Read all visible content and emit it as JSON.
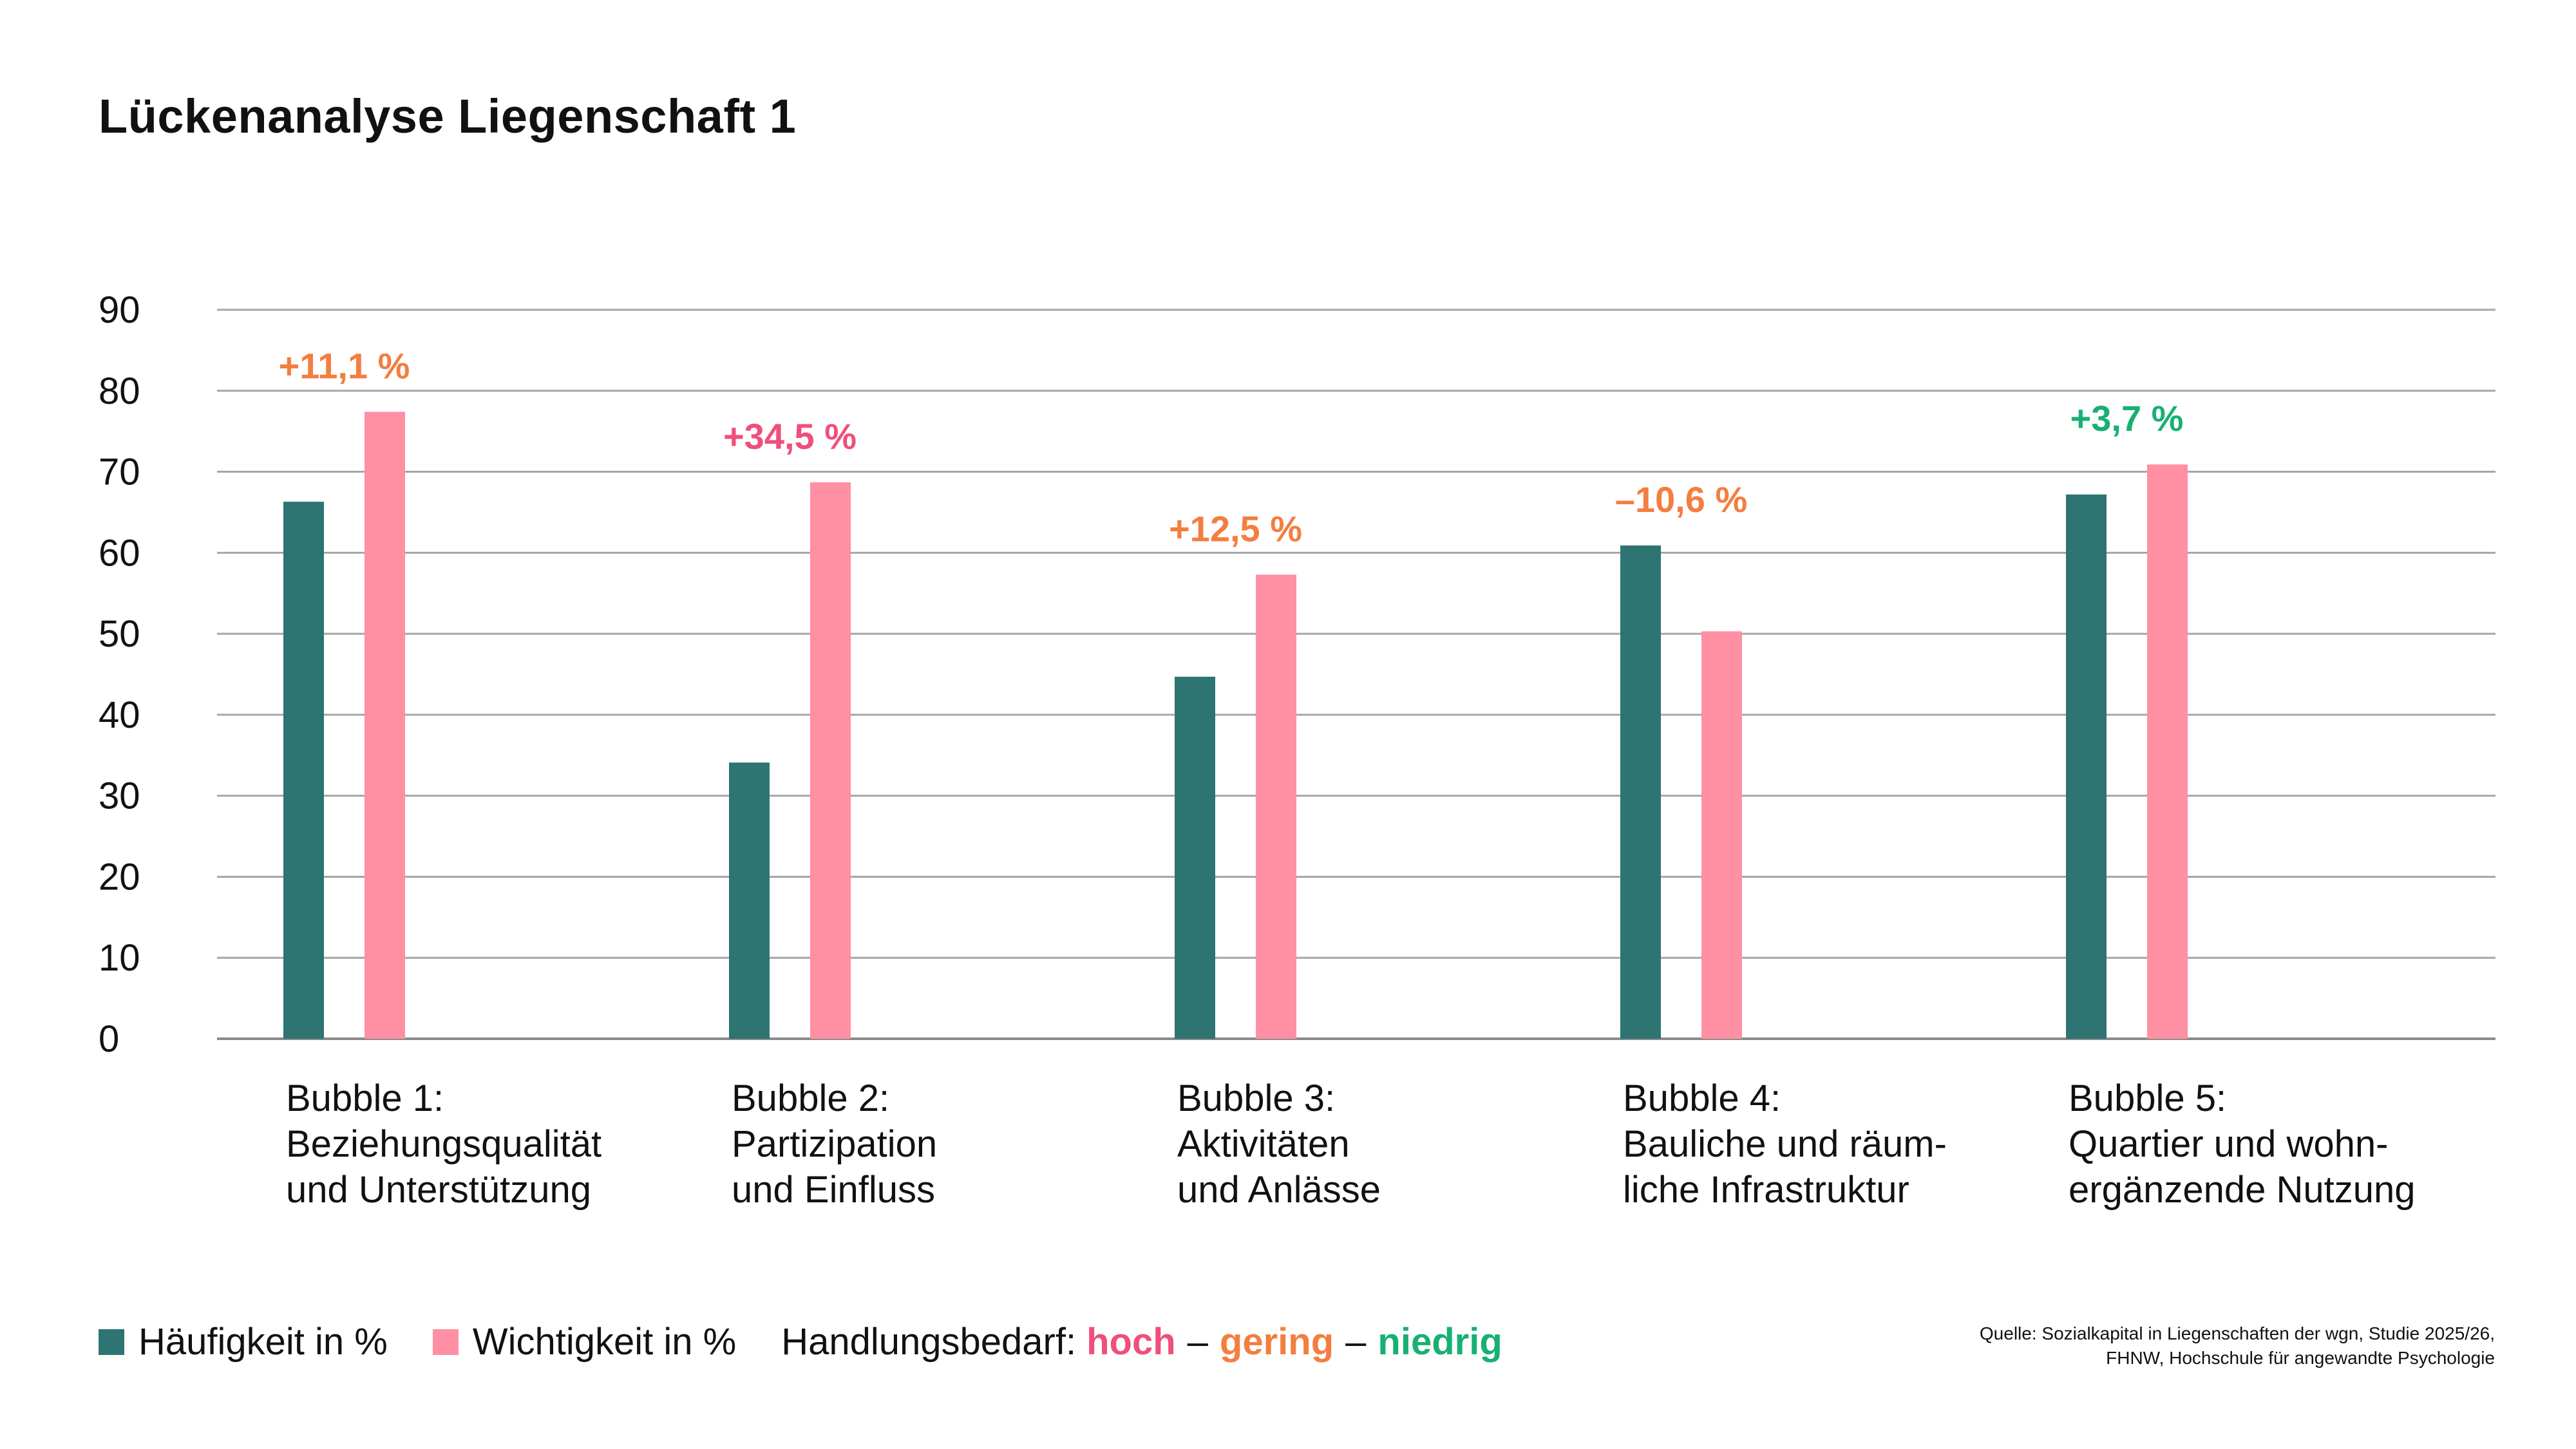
{
  "title": "Lückenanalyse Liegenschaft 1",
  "colors": {
    "haeufigkeit": "#2e7472",
    "wichtigkeit": "#ff8fa3",
    "hoch": "#ef4f7b",
    "gering": "#f37e3f",
    "niedrig": "#18b072",
    "grid": "#a6a6a6"
  },
  "chart_data": {
    "type": "bar",
    "title": "Lückenanalyse Liegenschaft 1",
    "ylim": [
      0,
      90
    ],
    "yticks": [
      "0",
      "10",
      "20",
      "30",
      "40",
      "50",
      "60",
      "70",
      "80",
      "90"
    ],
    "grid": true,
    "legend_position": "bottom-left",
    "categories": [
      [
        "Bubble 1:",
        "Beziehungsqualität",
        "und Unterstützung"
      ],
      [
        "Bubble 2:",
        "Partizipation",
        "und Einfluss"
      ],
      [
        "Bubble 3:",
        "Aktivitäten",
        "und Anlässe"
      ],
      [
        "Bubble 4:",
        "Bauliche und räum-",
        "liche Infrastruktur"
      ],
      [
        "Bubble 5:",
        "Quartier und wohn-",
        "ergänzende Nutzung"
      ]
    ],
    "series": [
      {
        "name": "Häufigkeit in %",
        "color_key": "haeufigkeit",
        "values": [
          66.3,
          34.1,
          44.7,
          60.9,
          67.2
        ]
      },
      {
        "name": "Wichtigkeit in %",
        "color_key": "wichtigkeit",
        "values": [
          77.4,
          68.7,
          57.3,
          50.3,
          70.9
        ]
      }
    ],
    "annotations": [
      {
        "text": "+11,1 %",
        "level": "gering"
      },
      {
        "text": "+34,5 %",
        "level": "hoch"
      },
      {
        "text": "+12,5 %",
        "level": "gering"
      },
      {
        "text": "–10,6 %",
        "level": "gering"
      },
      {
        "text": "+3,7 %",
        "level": "niedrig"
      }
    ]
  },
  "legend": {
    "series1": "Häufigkeit in %",
    "series2": "Wichtigkeit in %",
    "handlungsbedarf": "Handlungsbedarf:",
    "hoch": "hoch",
    "gering": "gering",
    "niedrig": "niedrig",
    "separator": "–"
  },
  "source": {
    "line1": "Quelle: Sozialkapital in Liegenschaften der wgn, Studie 2025/26,",
    "line2": "FHNW, Hochschule für angewandte Psychologie"
  }
}
